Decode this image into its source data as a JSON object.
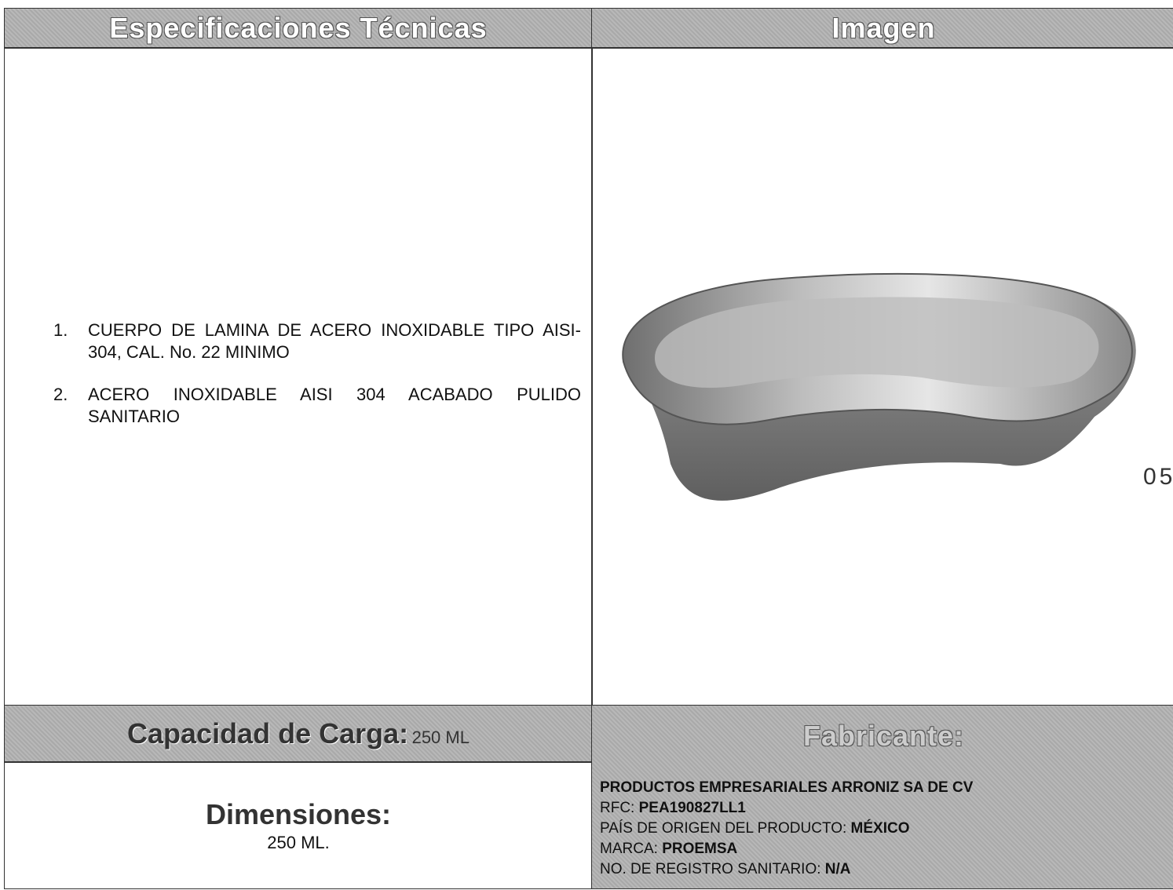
{
  "header": {
    "specs_title": "Especificaciones Técnicas",
    "image_title": "Imagen"
  },
  "specs": [
    "CUERPO DE LAMINA DE ACERO INOXIDABLE TIPO AISI-304, CAL. No. 22 MINIMO",
    "ACERO INOXIDABLE AISI 304 ACABADO PULIDO SANITARIO"
  ],
  "capacity": {
    "label": "Capacidad de Carga:",
    "value": "250 ML"
  },
  "dimensions": {
    "label": "Dimensiones:",
    "value": "250 ML."
  },
  "manufacturer": {
    "title": "Fabricante:",
    "name": "PRODUCTOS EMPRESARIALES ARRONIZ SA DE CV",
    "rfc_label": "RFC:",
    "rfc": "PEA190827LL1",
    "origin_label": "PAÍS DE ORIGEN DEL PRODUCTO:",
    "origin": "MÉXICO",
    "brand_label": "MARCA:",
    "brand": "PROEMSA",
    "registry_label": "NO. DE REGISTRO SANITARIO:",
    "registry": "N/A"
  },
  "page_number": "05"
}
